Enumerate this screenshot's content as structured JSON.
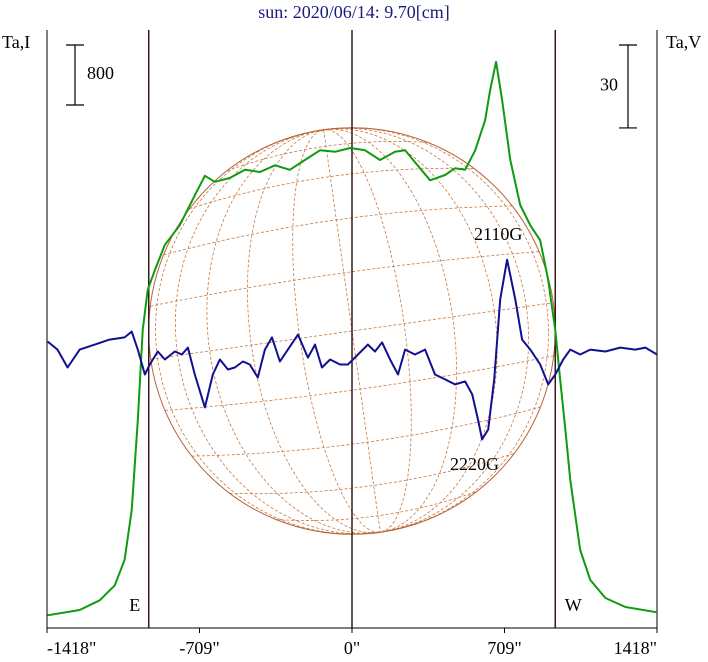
{
  "chart_data": {
    "type": "line",
    "title": "sun: 2020/06/14: 9.70[cm]",
    "ylabel": "Ta,I",
    "y2label": "Ta,V",
    "xlim": [
      -1418,
      1418
    ],
    "xticks": [
      {
        "value": -1418,
        "label": "-1418\""
      },
      {
        "value": -709,
        "label": "-709\""
      },
      {
        "value": 0,
        "label": "0\""
      },
      {
        "value": 709,
        "label": "709\""
      },
      {
        "value": 1418,
        "label": "1418\""
      }
    ],
    "ylim": [
      0,
      8000
    ],
    "y2lim": [
      -100,
      117
    ],
    "vlines": [
      -945,
      0,
      945
    ],
    "vline_labels": [
      "E",
      null,
      "W"
    ],
    "scale_bars": [
      {
        "axis": "y",
        "value": 800
      },
      {
        "axis": "y2",
        "value": 30
      }
    ],
    "annotations": [
      "2110G",
      "2220G"
    ],
    "series": [
      {
        "color": "#109a10",
        "axis": "y",
        "x": [
          -1415,
          -1266,
          -1173,
          -1103,
          -1057,
          -1024,
          -996,
          -973,
          -950,
          -917,
          -870,
          -801,
          -731,
          -684,
          -638,
          -568,
          -498,
          -428,
          -358,
          -289,
          -219,
          -149,
          -79,
          -9,
          61,
          130,
          200,
          247,
          293,
          363,
          433,
          479,
          526,
          573,
          619,
          642,
          670,
          698,
          736,
          782,
          829,
          875,
          912,
          945,
          968,
          992,
          1015,
          1061,
          1108,
          1178,
          1271,
          1418
        ],
        "values": [
          170,
          240,
          370,
          570,
          910,
          1570,
          2770,
          3970,
          4510,
          4770,
          5110,
          5370,
          5770,
          6030,
          5950,
          6000,
          6110,
          6080,
          6170,
          6110,
          6240,
          6370,
          6350,
          6400,
          6370,
          6240,
          6350,
          6370,
          6210,
          5970,
          6040,
          6130,
          6110,
          6370,
          6770,
          7170,
          7550,
          7040,
          6240,
          5640,
          5370,
          5170,
          4640,
          3970,
          3310,
          2640,
          1970,
          1040,
          640,
          400,
          280,
          210
        ]
      },
      {
        "color": "#101090",
        "axis": "y2",
        "x": [
          -1415,
          -1369,
          -1322,
          -1266,
          -1196,
          -1127,
          -1057,
          -1024,
          -996,
          -963,
          -940,
          -903,
          -870,
          -824,
          -791,
          -763,
          -731,
          -684,
          -647,
          -614,
          -577,
          -545,
          -507,
          -475,
          -438,
          -405,
          -372,
          -335,
          -298,
          -251,
          -205,
          -172,
          -140,
          -102,
          -56,
          -19,
          28,
          74,
          107,
          140,
          177,
          214,
          247,
          293,
          340,
          386,
          433,
          479,
          526,
          559,
          586,
          605,
          633,
          661,
          689,
          721,
          759,
          791,
          829,
          875,
          912,
          945,
          982,
          1015,
          1061,
          1108,
          1178,
          1247,
          1317,
          1364,
          1418
        ],
        "values": [
          3.6,
          0.7,
          -5.8,
          0.7,
          2.5,
          4.3,
          5.1,
          7.2,
          0.7,
          -8.3,
          -4.7,
          0,
          -2.9,
          0,
          -1.1,
          1.4,
          -8.3,
          -20.2,
          -8.3,
          -2.9,
          -6.5,
          -5.8,
          -3.6,
          -4.7,
          -9.4,
          0.7,
          5.1,
          -3.6,
          0.7,
          6.1,
          -2.2,
          2.5,
          -5.8,
          -2.9,
          -4.7,
          -4.7,
          -1.1,
          2.5,
          0,
          3.3,
          -2.9,
          -8.3,
          0.7,
          -1.1,
          0.7,
          -8.3,
          -10.1,
          -11.9,
          -10.8,
          -15.5,
          -24.6,
          -31.8,
          -28.2,
          -10.1,
          18.8,
          33.2,
          18.8,
          4.3,
          0.7,
          -4.7,
          -11.9,
          -8.3,
          -2.9,
          0.7,
          -1.1,
          0.7,
          0,
          1.4,
          0.7,
          1.4,
          -1.1
        ]
      }
    ]
  }
}
